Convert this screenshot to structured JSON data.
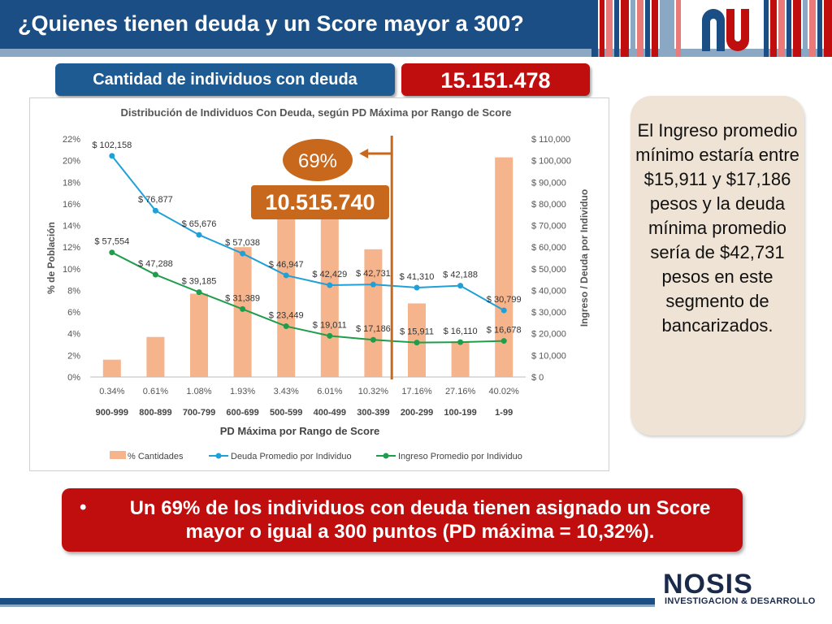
{
  "slide": {
    "title": "¿Quienes tienen deuda y un Score mayor a 300?",
    "count_label": "Cantidad de individuos con deuda",
    "count_value": "15.151.478",
    "highlight_pct": "69%",
    "highlight_value": "10.515.740",
    "side_text": "El Ingreso promedio mínimo estaría entre $15,911 y $17,186 pesos y la deuda mínima promedio sería de $42,731 pesos en este segmento de bancarizados.",
    "bullet": "•",
    "bottom_text": "Un 69% de los individuos con deuda tienen asignado un Score mayor o igual a 300 puntos (PD máxima = 10,32%).",
    "brand_name": "NOSIS",
    "brand_sub": "INVESTIGACION & DESARROLLO"
  },
  "colors": {
    "header": "#1b4e85",
    "pill_blue": "#1f5b93",
    "pill_red": "#c00d0d",
    "bar": "#f5b48c",
    "debt_line": "#1fa0d8",
    "income_line": "#1e9e4a",
    "highlight_orange": "#c8681c"
  },
  "chart_data": {
    "type": "bar",
    "title": "Distribución de Individuos Con Deuda, según PD Máxima por Rango de Score",
    "xlabel": "PD Máxima por Rango de Score",
    "ylabel": "% de Población",
    "y2label": "Ingreso / Deuda por Individuo",
    "pd_labels": [
      "0.34%",
      "0.61%",
      "1.08%",
      "1.93%",
      "3.43%",
      "6.01%",
      "10.32%",
      "17.16%",
      "27.16%",
      "40.02%"
    ],
    "categories": [
      "900-999",
      "800-899",
      "700-799",
      "600-699",
      "500-599",
      "400-499",
      "300-399",
      "200-299",
      "100-199",
      "1-99"
    ],
    "ylim": [
      0,
      0.22
    ],
    "yticks": [
      "0%",
      "2%",
      "4%",
      "6%",
      "8%",
      "10%",
      "12%",
      "14%",
      "16%",
      "18%",
      "20%",
      "22%"
    ],
    "y2lim": [
      0,
      110000
    ],
    "y2ticks": [
      "$ 0",
      "$ 10,000",
      "$ 20,000",
      "$ 30,000",
      "$ 40,000",
      "$ 50,000",
      "$ 60,000",
      "$ 70,000",
      "$ 80,000",
      "$ 90,000",
      "$ 100,000",
      "$ 110,000"
    ],
    "series": [
      {
        "name": "% Cantidades",
        "type": "bar",
        "axis": "left",
        "values": [
          0.016,
          0.037,
          0.077,
          0.12,
          0.155,
          0.175,
          0.118,
          0.068,
          0.033,
          0.203
        ]
      },
      {
        "name": "Deuda Promedio por Individuo",
        "type": "line",
        "axis": "right",
        "values": [
          102158,
          76877,
          65676,
          57038,
          46947,
          42429,
          42731,
          41310,
          42188,
          30799
        ],
        "labels": [
          "$ 102,158",
          "$ 76,877",
          "$ 65,676",
          "$ 57,038",
          "$ 46,947",
          "$ 42,429",
          "$ 42,731",
          "$ 41,310",
          "$ 42,188",
          "$ 30,799"
        ]
      },
      {
        "name": "Ingreso Promedio por Individuo",
        "type": "line",
        "axis": "right",
        "values": [
          57554,
          47288,
          39185,
          31389,
          23449,
          19011,
          17186,
          15911,
          16110,
          16678
        ],
        "labels": [
          "$ 57,554",
          "$ 47,288",
          "$ 39,185",
          "$ 31,389",
          "$ 23,449",
          "$ 19,011",
          "$ 17,186",
          "$ 15,911",
          "$ 16,110",
          "$ 16,678"
        ]
      }
    ],
    "legend_position": "bottom",
    "grid": false
  }
}
